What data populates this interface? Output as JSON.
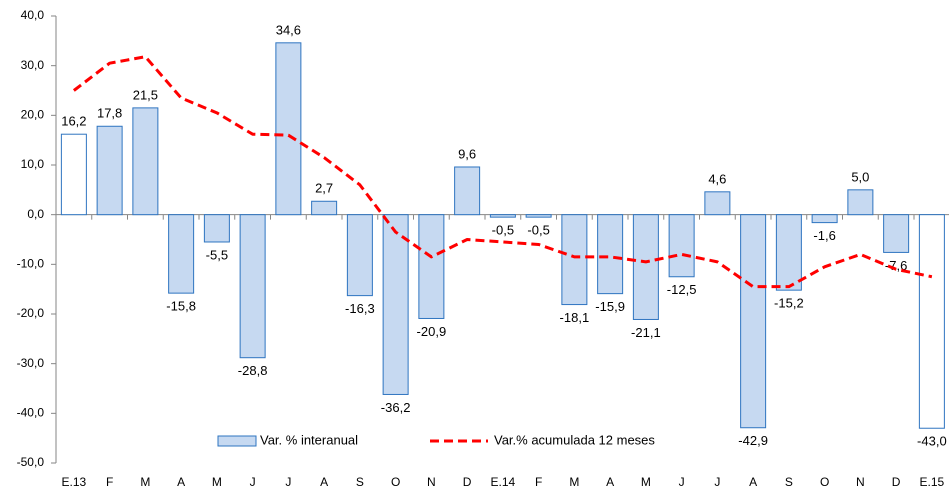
{
  "chart_data": {
    "type": "bar-line",
    "categories": [
      "E.13",
      "F",
      "M",
      "A",
      "M",
      "J",
      "J",
      "A",
      "S",
      "O",
      "N",
      "D",
      "E.14",
      "F",
      "M",
      "A",
      "M",
      "J",
      "J",
      "A",
      "S",
      "O",
      "N",
      "D",
      "E.15"
    ],
    "series": [
      {
        "name": "Var. % interanual",
        "type": "bar",
        "color": "#c6d9f1",
        "edge_color": "#2e74c0",
        "colors": [
          "#ffffff",
          "#c6d9f1",
          "#c6d9f1",
          "#c6d9f1",
          "#c6d9f1",
          "#c6d9f1",
          "#c6d9f1",
          "#c6d9f1",
          "#c6d9f1",
          "#c6d9f1",
          "#c6d9f1",
          "#c6d9f1",
          "#c6d9f1",
          "#c6d9f1",
          "#c6d9f1",
          "#c6d9f1",
          "#c6d9f1",
          "#c6d9f1",
          "#c6d9f1",
          "#c6d9f1",
          "#c6d9f1",
          "#c6d9f1",
          "#c6d9f1",
          "#c6d9f1",
          "#ffffff"
        ],
        "values": [
          16.2,
          17.8,
          21.5,
          -15.8,
          -5.5,
          -28.8,
          34.6,
          2.7,
          -16.3,
          -36.2,
          -20.9,
          9.6,
          -0.5,
          -0.5,
          -18.1,
          -15.9,
          -21.1,
          -12.5,
          4.6,
          -42.9,
          -15.2,
          -1.6,
          5.0,
          -7.6,
          -43.0
        ],
        "value_labels": [
          "16,2",
          "17,8",
          "21,5",
          "-15,8",
          "-5,5",
          "-28,8",
          "34,6",
          "2,7",
          "-16,3",
          "-36,2",
          "-20,9",
          "9,6",
          "-0,5",
          "-0,5",
          "-18,1",
          "-15,9",
          "-21,1",
          "-12,5",
          "4,6",
          "-42,9",
          "-15,2",
          "-1,6",
          "5,0",
          "-7,6",
          "-43,0"
        ]
      },
      {
        "name": "Var.% acumulada 12 meses",
        "type": "line",
        "color": "#ff0000",
        "dashed": true,
        "values": [
          25,
          30.5,
          31.8,
          23.5,
          20.5,
          16.2,
          16,
          11.5,
          6,
          -3.5,
          -8.5,
          -5,
          -5.5,
          -6,
          -8.5,
          -8.5,
          -9.5,
          -8,
          -9.5,
          -14.5,
          -14.5,
          -10.5,
          -8,
          -11,
          -12.5
        ]
      }
    ],
    "ylim": [
      -50,
      40
    ],
    "yticks": [
      {
        "value": -50,
        "label": "-50,0"
      },
      {
        "value": -40,
        "label": "-40,0"
      },
      {
        "value": -30,
        "label": "-30,0"
      },
      {
        "value": -20,
        "label": "-20,0"
      },
      {
        "value": -10,
        "label": "-10,0"
      },
      {
        "value": 0,
        "label": "0,0"
      },
      {
        "value": 10,
        "label": "10,0"
      },
      {
        "value": 20,
        "label": "20,0"
      },
      {
        "value": 30,
        "label": "30,0"
      },
      {
        "value": 40,
        "label": "40,0"
      }
    ],
    "grid": false,
    "legend": "bottom-center"
  }
}
